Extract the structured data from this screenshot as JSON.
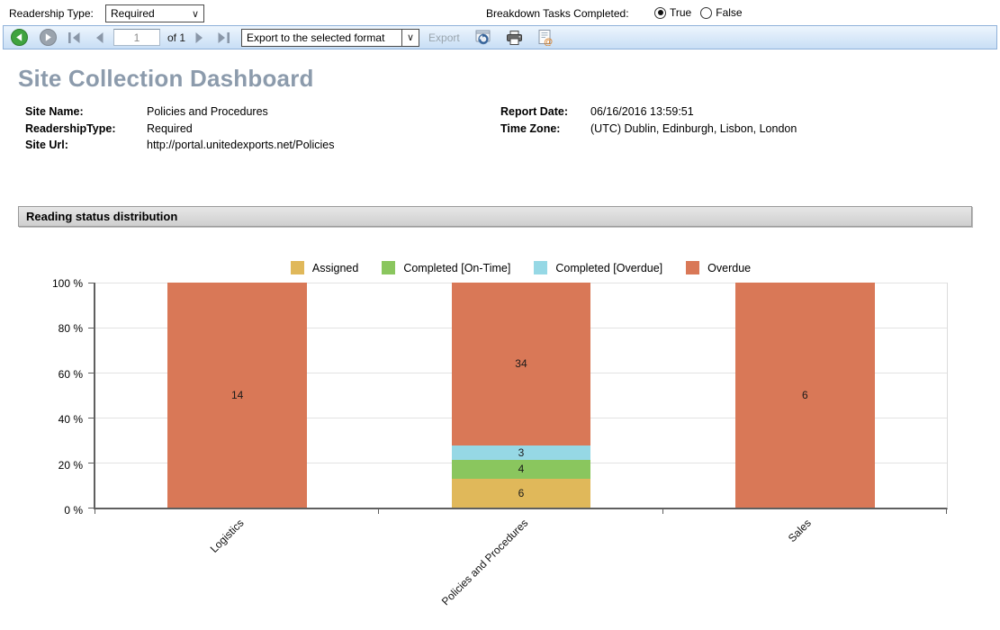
{
  "params": {
    "readership_label": "Readership Type:",
    "readership_value": "Required",
    "breakdown_label": "Breakdown Tasks Completed:",
    "options": [
      "True",
      "False"
    ],
    "selected": "True"
  },
  "toolbar": {
    "page_value": "1",
    "of_label": "of 1",
    "export_select_value": "Export to the selected format",
    "export_button": "Export",
    "icons": [
      "back",
      "forward",
      "first-page",
      "previous-page",
      "next-page",
      "last-page",
      "refresh",
      "print",
      "data-feed"
    ]
  },
  "report": {
    "title": "Site Collection Dashboard",
    "fields_left": [
      {
        "label": "Site Name:",
        "value": "Policies and Procedures"
      },
      {
        "label": "ReadershipType:",
        "value": "Required"
      },
      {
        "label": "Site Url:",
        "value": "http://portal.unitedexports.net/Policies"
      }
    ],
    "fields_right": [
      {
        "label": "Report Date:",
        "value": "06/16/2016 13:59:51"
      },
      {
        "label": "Time Zone:",
        "value": "(UTC) Dublin, Edinburgh, Lisbon, London"
      }
    ],
    "section_title": "Reading status distribution"
  },
  "chart_data": {
    "type": "bar",
    "stacked": true,
    "percent_axis": true,
    "title": "Reading status distribution",
    "categories": [
      "Logistics",
      "Policies and Procedures",
      "Sales"
    ],
    "series": [
      {
        "name": "Assigned",
        "color": "#E0B85A",
        "values": [
          0,
          6,
          0
        ]
      },
      {
        "name": "Completed [On-Time]",
        "color": "#8AC65E",
        "values": [
          0,
          4,
          0
        ]
      },
      {
        "name": "Completed [Overdue]",
        "color": "#96D8E5",
        "values": [
          0,
          3,
          0
        ]
      },
      {
        "name": "Overdue",
        "color": "#D97857",
        "values": [
          14,
          34,
          6
        ]
      }
    ],
    "y_ticks": [
      0,
      20,
      40,
      60,
      80,
      100
    ],
    "y_suffix": " %",
    "ylim": [
      0,
      100
    ],
    "grid": true,
    "legend_position": "top"
  }
}
